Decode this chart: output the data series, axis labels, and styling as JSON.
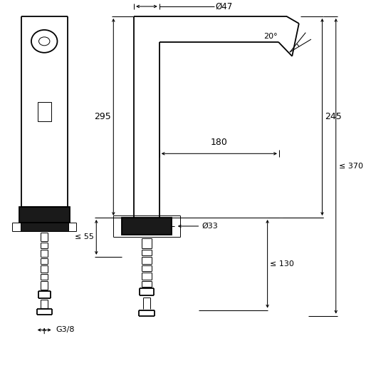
{
  "bg": "#ffffff",
  "lc": "#000000",
  "figsize": [
    5.14,
    5.2
  ],
  "dpi": 100,
  "ann": {
    "dia47": "Ø47",
    "d295": "295",
    "d180": "180",
    "d245": "245",
    "d55": "≤ 55",
    "d130": "≤ 130",
    "d370": "≤ 370",
    "d20": "20°",
    "dia33": "Ø33",
    "g38": "G3/8"
  },
  "lw": 1.3,
  "lwd": 0.75,
  "lwt": 0.7
}
